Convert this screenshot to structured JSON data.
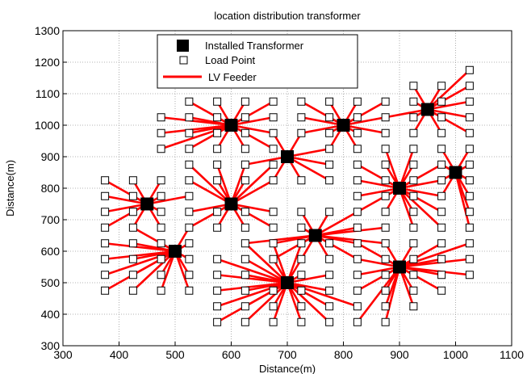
{
  "chart_data": {
    "type": "scatter",
    "title": "location distribution transformer",
    "xlabel": "Distance(m)",
    "ylabel": "Distance(m)",
    "xlim": [
      300,
      1100
    ],
    "ylim": [
      300,
      1300
    ],
    "xticks": [
      300,
      400,
      500,
      600,
      700,
      800,
      900,
      1000,
      1100
    ],
    "yticks": [
      300,
      400,
      500,
      600,
      700,
      800,
      900,
      1000,
      1100,
      1200,
      1300
    ],
    "grid": true,
    "legend_position": "top-left",
    "legend": [
      "Installed Transformer",
      "Load Point",
      "LV Feeder"
    ],
    "colors": {
      "transformer": "#000000",
      "feeder": "#ff0000",
      "load_point": "#000000"
    },
    "transformers": [
      [
        450,
        750
      ],
      [
        500,
        600
      ],
      [
        600,
        1000
      ],
      [
        600,
        750
      ],
      [
        700,
        900
      ],
      [
        700,
        500
      ],
      [
        750,
        650
      ],
      [
        800,
        1000
      ],
      [
        900,
        800
      ],
      [
        900,
        550
      ],
      [
        950,
        1050
      ],
      [
        1000,
        850
      ]
    ],
    "clusters": [
      {
        "transformer": 0,
        "loads": [
          [
            375,
            825
          ],
          [
            425,
            825
          ],
          [
            475,
            825
          ],
          [
            375,
            775
          ],
          [
            425,
            775
          ],
          [
            475,
            775
          ],
          [
            525,
            775
          ],
          [
            375,
            725
          ],
          [
            425,
            725
          ],
          [
            475,
            725
          ],
          [
            375,
            675
          ],
          [
            425,
            675
          ],
          [
            475,
            675
          ]
        ]
      },
      {
        "transformer": 1,
        "loads": [
          [
            375,
            625
          ],
          [
            425,
            625
          ],
          [
            475,
            625
          ],
          [
            525,
            625
          ],
          [
            375,
            575
          ],
          [
            425,
            575
          ],
          [
            475,
            575
          ],
          [
            525,
            575
          ],
          [
            375,
            525
          ],
          [
            425,
            525
          ],
          [
            475,
            525
          ],
          [
            525,
            525
          ],
          [
            375,
            475
          ],
          [
            425,
            475
          ],
          [
            475,
            475
          ],
          [
            525,
            475
          ],
          [
            425,
            675
          ],
          [
            525,
            675
          ]
        ]
      },
      {
        "transformer": 2,
        "loads": [
          [
            525,
            1075
          ],
          [
            575,
            1075
          ],
          [
            625,
            1075
          ],
          [
            675,
            1075
          ],
          [
            525,
            1025
          ],
          [
            575,
            1025
          ],
          [
            625,
            1025
          ],
          [
            675,
            1025
          ],
          [
            525,
            975
          ],
          [
            575,
            975
          ],
          [
            625,
            975
          ],
          [
            675,
            975
          ],
          [
            525,
            925
          ],
          [
            575,
            925
          ],
          [
            625,
            925
          ],
          [
            675,
            925
          ],
          [
            475,
            1025
          ],
          [
            475,
            975
          ],
          [
            475,
            925
          ]
        ]
      },
      {
        "transformer": 3,
        "loads": [
          [
            525,
            875
          ],
          [
            575,
            875
          ],
          [
            625,
            875
          ],
          [
            675,
            875
          ],
          [
            525,
            825
          ],
          [
            575,
            825
          ],
          [
            625,
            825
          ],
          [
            675,
            825
          ],
          [
            525,
            725
          ],
          [
            575,
            725
          ],
          [
            625,
            725
          ],
          [
            675,
            725
          ],
          [
            525,
            675
          ],
          [
            575,
            675
          ],
          [
            625,
            675
          ],
          [
            675,
            675
          ]
        ]
      },
      {
        "transformer": 4,
        "loads": [
          [
            625,
            875
          ],
          [
            675,
            975
          ],
          [
            725,
            975
          ],
          [
            775,
            925
          ],
          [
            775,
            875
          ],
          [
            675,
            825
          ],
          [
            725,
            825
          ],
          [
            775,
            825
          ]
        ]
      },
      {
        "transformer": 5,
        "loads": [
          [
            575,
            575
          ],
          [
            625,
            575
          ],
          [
            675,
            575
          ],
          [
            725,
            575
          ],
          [
            575,
            525
          ],
          [
            625,
            525
          ],
          [
            725,
            525
          ],
          [
            775,
            525
          ],
          [
            575,
            475
          ],
          [
            625,
            475
          ],
          [
            675,
            475
          ],
          [
            725,
            475
          ],
          [
            775,
            475
          ],
          [
            575,
            425
          ],
          [
            625,
            425
          ],
          [
            675,
            425
          ],
          [
            725,
            425
          ],
          [
            775,
            425
          ],
          [
            825,
            425
          ],
          [
            575,
            375
          ],
          [
            625,
            375
          ],
          [
            675,
            375
          ],
          [
            725,
            375
          ],
          [
            775,
            375
          ],
          [
            625,
            625
          ],
          [
            675,
            625
          ],
          [
            725,
            625
          ]
        ]
      },
      {
        "transformer": 6,
        "loads": [
          [
            625,
            625
          ],
          [
            675,
            625
          ],
          [
            725,
            625
          ],
          [
            775,
            625
          ],
          [
            825,
            625
          ],
          [
            875,
            625
          ],
          [
            725,
            725
          ],
          [
            775,
            725
          ],
          [
            825,
            725
          ],
          [
            725,
            675
          ],
          [
            825,
            675
          ],
          [
            875,
            675
          ],
          [
            675,
            575
          ],
          [
            775,
            575
          ],
          [
            825,
            575
          ],
          [
            725,
            575
          ]
        ]
      },
      {
        "transformer": 7,
        "loads": [
          [
            725,
            1075
          ],
          [
            775,
            1075
          ],
          [
            825,
            1075
          ],
          [
            875,
            1075
          ],
          [
            725,
            1025
          ],
          [
            775,
            1025
          ],
          [
            825,
            1025
          ],
          [
            875,
            1025
          ],
          [
            725,
            975
          ],
          [
            775,
            975
          ],
          [
            825,
            975
          ],
          [
            875,
            975
          ],
          [
            775,
            925
          ],
          [
            825,
            925
          ]
        ]
      },
      {
        "transformer": 8,
        "loads": [
          [
            825,
            875
          ],
          [
            875,
            875
          ],
          [
            925,
            875
          ],
          [
            975,
            875
          ],
          [
            825,
            825
          ],
          [
            875,
            825
          ],
          [
            925,
            825
          ],
          [
            975,
            825
          ],
          [
            825,
            775
          ],
          [
            875,
            775
          ],
          [
            925,
            775
          ],
          [
            975,
            775
          ],
          [
            825,
            725
          ],
          [
            875,
            725
          ],
          [
            925,
            725
          ],
          [
            975,
            725
          ],
          [
            925,
            675
          ],
          [
            975,
            675
          ],
          [
            875,
            925
          ],
          [
            925,
            925
          ]
        ]
      },
      {
        "transformer": 9,
        "loads": [
          [
            825,
            625
          ],
          [
            875,
            625
          ],
          [
            925,
            625
          ],
          [
            975,
            625
          ],
          [
            1025,
            625
          ],
          [
            825,
            575
          ],
          [
            875,
            575
          ],
          [
            925,
            575
          ],
          [
            975,
            575
          ],
          [
            1025,
            575
          ],
          [
            825,
            525
          ],
          [
            875,
            525
          ],
          [
            925,
            525
          ],
          [
            975,
            525
          ],
          [
            1025,
            525
          ],
          [
            825,
            475
          ],
          [
            875,
            475
          ],
          [
            925,
            475
          ],
          [
            975,
            475
          ],
          [
            875,
            425
          ],
          [
            925,
            425
          ],
          [
            825,
            375
          ],
          [
            875,
            375
          ]
        ]
      },
      {
        "transformer": 10,
        "loads": [
          [
            925,
            1125
          ],
          [
            975,
            1125
          ],
          [
            1025,
            1175
          ],
          [
            1025,
            1125
          ],
          [
            925,
            1075
          ],
          [
            975,
            1075
          ],
          [
            1025,
            1075
          ],
          [
            925,
            1025
          ],
          [
            975,
            1025
          ],
          [
            1025,
            1025
          ],
          [
            925,
            975
          ],
          [
            975,
            975
          ],
          [
            1025,
            975
          ],
          [
            875,
            1025
          ]
        ]
      },
      {
        "transformer": 11,
        "loads": [
          [
            975,
            925
          ],
          [
            1025,
            925
          ],
          [
            975,
            875
          ],
          [
            1025,
            875
          ],
          [
            1025,
            825
          ],
          [
            975,
            825
          ],
          [
            1025,
            775
          ],
          [
            1025,
            725
          ],
          [
            1025,
            675
          ],
          [
            975,
            775
          ]
        ]
      }
    ]
  }
}
